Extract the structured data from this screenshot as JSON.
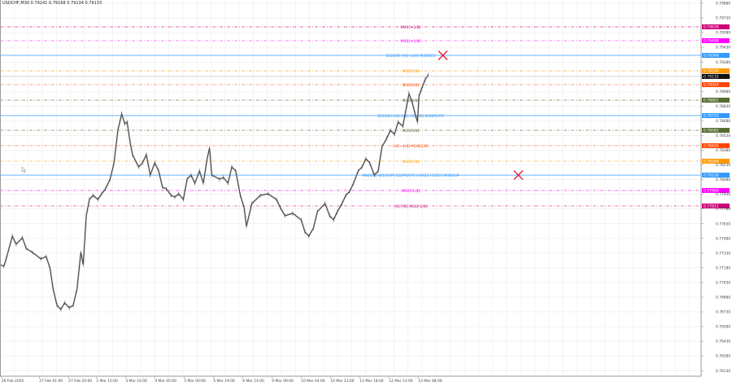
{
  "header": {
    "title": "USDCHF,M30 0.79141 0.79168 0.79134 0.79133"
  },
  "colors": {
    "price_line": "#333333",
    "grid": "#ececec",
    "axis": "#9a9a9a",
    "marker_x": "#e8203a"
  },
  "chart_data": {
    "type": "line",
    "symbol": "USDCHF",
    "timeframe": "M30",
    "grid": true,
    "ylim": [
      0.7606,
      0.79913
    ],
    "y_ticks": [
      "0.79880",
      "0.79730",
      "0.79580",
      "0.79430",
      "0.79280",
      "0.79130",
      "0.78980",
      "0.78830",
      "0.78680",
      "0.78530",
      "0.78380",
      "0.78230",
      "0.78080",
      "0.77930",
      "0.77780",
      "0.77630",
      "0.77480",
      "0.77330",
      "0.77180",
      "0.77030",
      "0.76880",
      "0.76730",
      "0.76580",
      "0.76430",
      "0.76280",
      "0.76130"
    ],
    "x_ticks": [
      {
        "bar": 2,
        "label": "26 Feb 2026"
      },
      {
        "bar": 51,
        "label": "27 Feb 01:00"
      },
      {
        "bar": 89,
        "label": "27 Feb 20:00"
      },
      {
        "bar": 125,
        "label": "2 Mar 15:00"
      },
      {
        "bar": 163,
        "label": "3 Mar 10:00"
      },
      {
        "bar": 201,
        "label": "4 Mar 05:00"
      },
      {
        "bar": 239,
        "label": "5 Mar 00:00"
      },
      {
        "bar": 277,
        "label": "5 Mar 19:00"
      },
      {
        "bar": 315,
        "label": "6 Mar 14:00"
      },
      {
        "bar": 353,
        "label": "9 Mar 09:00"
      },
      {
        "bar": 391,
        "label": "10 Mar 04:00"
      },
      {
        "bar": 429,
        "label": "10 Mar 23:00"
      },
      {
        "bar": 467,
        "label": "11 Mar 18:00"
      },
      {
        "bar": 505,
        "label": "12 Mar 13:00"
      },
      {
        "bar": 543,
        "label": "13 Mar 08:00"
      }
    ],
    "series": [
      {
        "points": [
          [
            0,
            0.77212
          ],
          [
            5,
            0.77196
          ],
          [
            8,
            0.77271
          ],
          [
            16,
            0.77503
          ],
          [
            21,
            0.7742
          ],
          [
            29,
            0.77487
          ],
          [
            34,
            0.77378
          ],
          [
            42,
            0.77337
          ],
          [
            53,
            0.77271
          ],
          [
            60,
            0.77295
          ],
          [
            65,
            0.77171
          ],
          [
            69,
            0.76963
          ],
          [
            74,
            0.76797
          ],
          [
            79,
            0.76755
          ],
          [
            84,
            0.76822
          ],
          [
            90,
            0.76772
          ],
          [
            95,
            0.76797
          ],
          [
            100,
            0.76963
          ],
          [
            105,
            0.77337
          ],
          [
            108,
            0.77212
          ],
          [
            112,
            0.77711
          ],
          [
            116,
            0.77877
          ],
          [
            121,
            0.77919
          ],
          [
            127,
            0.77877
          ],
          [
            132,
            0.77935
          ],
          [
            137,
            0.77985
          ],
          [
            143,
            0.78085
          ],
          [
            148,
            0.78251
          ],
          [
            153,
            0.78583
          ],
          [
            158,
            0.7875
          ],
          [
            162,
            0.7865
          ],
          [
            165,
            0.78667
          ],
          [
            169,
            0.78459
          ],
          [
            172,
            0.78334
          ],
          [
            180,
            0.78209
          ],
          [
            185,
            0.78251
          ],
          [
            190,
            0.78334
          ],
          [
            195,
            0.78126
          ],
          [
            201,
            0.78251
          ],
          [
            206,
            0.78168
          ],
          [
            211,
            0.78002
          ],
          [
            216,
            0.77985
          ],
          [
            222,
            0.77919
          ],
          [
            227,
            0.77902
          ],
          [
            232,
            0.77935
          ],
          [
            238,
            0.77877
          ],
          [
            243,
            0.78085
          ],
          [
            248,
            0.78126
          ],
          [
            253,
            0.78043
          ],
          [
            259,
            0.78168
          ],
          [
            264,
            0.78043
          ],
          [
            269,
            0.78293
          ],
          [
            272,
            0.78401
          ],
          [
            275,
            0.78126
          ],
          [
            285,
            0.78085
          ],
          [
            290,
            0.78101
          ],
          [
            296,
            0.78043
          ],
          [
            301,
            0.78209
          ],
          [
            306,
            0.78168
          ],
          [
            312,
            0.77919
          ],
          [
            317,
            0.77794
          ],
          [
            320,
            0.77603
          ],
          [
            327,
            0.77836
          ],
          [
            338,
            0.77919
          ],
          [
            348,
            0.77935
          ],
          [
            359,
            0.77877
          ],
          [
            364,
            0.77794
          ],
          [
            370,
            0.77711
          ],
          [
            380,
            0.77736
          ],
          [
            391,
            0.77669
          ],
          [
            396,
            0.77545
          ],
          [
            401,
            0.77503
          ],
          [
            407,
            0.77586
          ],
          [
            412,
            0.77752
          ],
          [
            422,
            0.77836
          ],
          [
            428,
            0.77711
          ],
          [
            433,
            0.77669
          ],
          [
            438,
            0.77752
          ],
          [
            444,
            0.77836
          ],
          [
            449,
            0.77919
          ],
          [
            454,
            0.7796
          ],
          [
            459,
            0.78043
          ],
          [
            465,
            0.78168
          ],
          [
            470,
            0.78209
          ],
          [
            475,
            0.78293
          ],
          [
            480,
            0.78251
          ],
          [
            486,
            0.78126
          ],
          [
            491,
            0.78168
          ],
          [
            496,
            0.78416
          ],
          [
            502,
            0.785
          ],
          [
            507,
            0.78583
          ],
          [
            512,
            0.78542
          ],
          [
            517,
            0.78667
          ],
          [
            523,
            0.78625
          ],
          [
            528,
            0.78833
          ],
          [
            531,
            0.78957
          ],
          [
            535,
            0.78874
          ],
          [
            539,
            0.7875
          ],
          [
            542,
            0.78667
          ],
          [
            544,
            0.78932
          ],
          [
            547,
            0.78999
          ],
          [
            549,
            0.7904
          ],
          [
            552,
            0.79099
          ],
          [
            556,
            0.79148
          ]
        ]
      }
    ],
    "levels": [
      {
        "label": "M30[+2/8]",
        "price": "0.79639",
        "color": "#cc0077",
        "style": "dash"
      },
      {
        "label": "M30[+1/8]",
        "price": "0.79498",
        "color": "#ff00ff",
        "style": "dash"
      },
      {
        "label": "D1[8/8] H4[+2/8] M30RES",
        "price": "0.79348",
        "color": "#3399ff",
        "style": "solid"
      },
      {
        "label": "M30[7/8]",
        "price": "0.79190",
        "color": "#ff9900",
        "style": "dash"
      },
      {
        "label": "M30[6/8]",
        "price": "0.79049",
        "color": "#ff4500",
        "style": "dash"
      },
      {
        "label": "M30[5/8]",
        "price": "0.78891",
        "color": "#556b2f",
        "style": "dash"
      },
      {
        "label": "D1[5/8] H4[-1/8] H1[4/8] M30PIVOT",
        "price": "0.78733",
        "color": "#3399ff",
        "style": "solid"
      },
      {
        "label": "M30[3/8]",
        "price": "0.78583",
        "color": "#556b2f",
        "style": "dash"
      },
      {
        "label": "H1[+1/8] M30[2/8]",
        "price": "0.78426",
        "color": "#ff4500",
        "style": "dash"
      },
      {
        "label": "M30[1/8]",
        "price": "0.78268",
        "color": "#ff9900",
        "style": "dash"
      },
      {
        "label": "MN[0/8] W1[SUP] D1[PIVOT] H4RES H1RES M30SUP",
        "price": "0.78126",
        "color": "#3399ff",
        "style": "solid"
      },
      {
        "label": "M30[-1/8]",
        "price": "0.77969",
        "color": "#ff00ff",
        "style": "dash"
      },
      {
        "label": "H1[7/8] M30[-2/8]",
        "price": "0.77811",
        "color": "#cc0077",
        "style": "dash"
      }
    ],
    "current_price": {
      "price": "0.79133",
      "color": "#000000"
    },
    "markers": [
      {
        "type": "x-cross",
        "price": 0.79348,
        "bar": 575
      },
      {
        "type": "x-cross",
        "price": 0.78126,
        "bar": 673
      }
    ]
  }
}
